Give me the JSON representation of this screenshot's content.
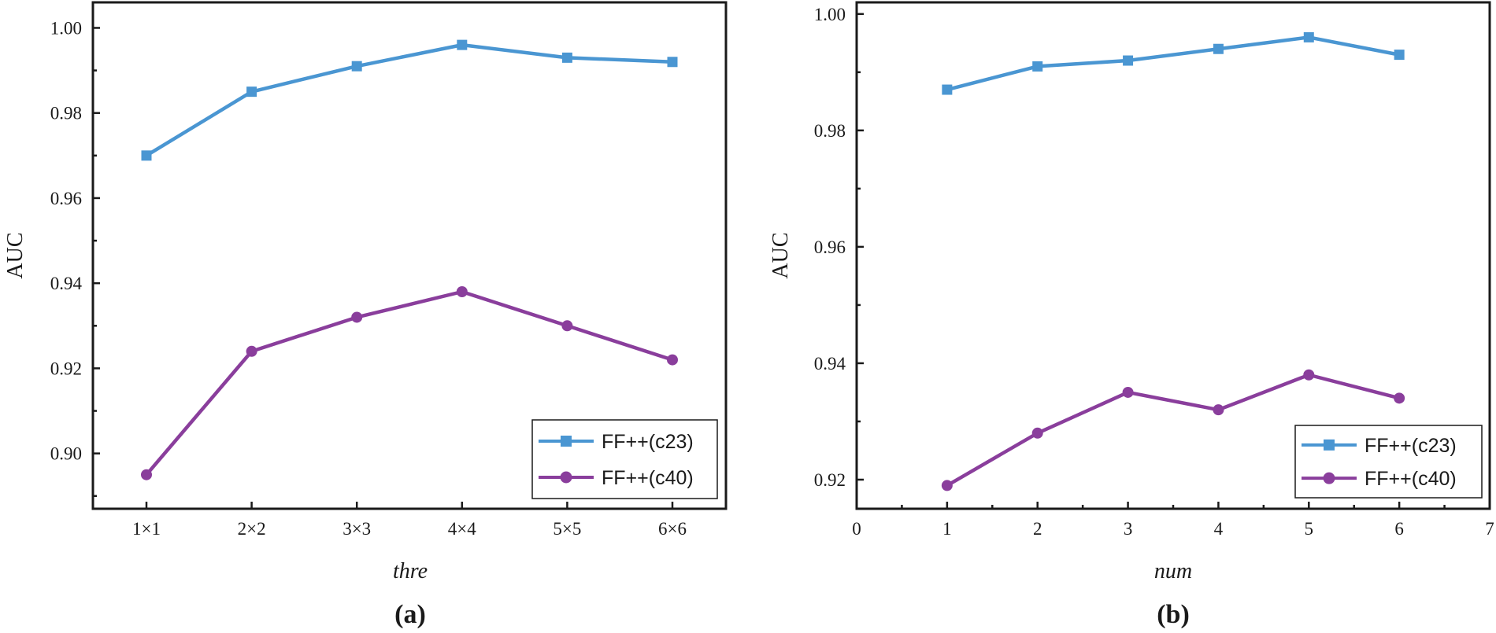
{
  "chart_data": [
    {
      "type": "line",
      "panel_label": "(a)",
      "xlabel": "thre",
      "ylabel": "AUC",
      "categories": [
        "1×1",
        "2×2",
        "3×3",
        "4×4",
        "5×5",
        "6×6"
      ],
      "ylim": [
        0.887,
        1.006
      ],
      "yticks": [
        "0.90",
        "0.92",
        "0.94",
        "0.96",
        "0.98",
        "1.00"
      ],
      "legend_position": "bottom-right",
      "series": [
        {
          "name": "FF++(c23)",
          "marker": "square",
          "color": "#4a96d2",
          "values": [
            0.97,
            0.985,
            0.991,
            0.996,
            0.993,
            0.992
          ]
        },
        {
          "name": "FF++(c40)",
          "marker": "circle",
          "color": "#8a3e9c",
          "values": [
            0.895,
            0.924,
            0.932,
            0.938,
            0.93,
            0.922
          ]
        }
      ]
    },
    {
      "type": "line",
      "panel_label": "(b)",
      "xlabel": "num",
      "ylabel": "AUC",
      "xlim": [
        0,
        7
      ],
      "xticks": [
        "0",
        "1",
        "2",
        "3",
        "4",
        "5",
        "6",
        "7"
      ],
      "x": [
        1,
        2,
        3,
        4,
        5,
        6
      ],
      "ylim": [
        0.915,
        1.002
      ],
      "yticks": [
        "0.92",
        "0.94",
        "0.96",
        "0.98",
        "1.00"
      ],
      "legend_position": "bottom-right",
      "series": [
        {
          "name": "FF++(c23)",
          "marker": "square",
          "color": "#4a96d2",
          "values": [
            0.987,
            0.991,
            0.992,
            0.994,
            0.996,
            0.993
          ]
        },
        {
          "name": "FF++(c40)",
          "marker": "circle",
          "color": "#8a3e9c",
          "values": [
            0.919,
            0.928,
            0.935,
            0.932,
            0.938,
            0.934
          ]
        }
      ]
    }
  ]
}
